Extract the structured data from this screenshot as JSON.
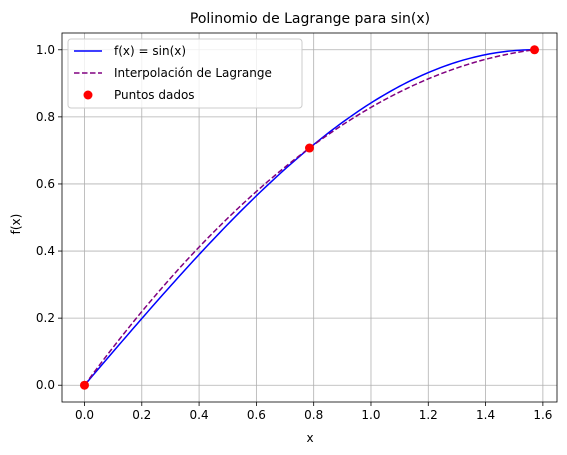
{
  "chart_data": {
    "type": "line",
    "title": "Polinomio de Lagrange para sin(x)",
    "xlabel": "x",
    "ylabel": "f(x)",
    "xlim": [
      -0.0785,
      1.6493
    ],
    "ylim": [
      -0.05,
      1.05
    ],
    "xticks": [
      0.0,
      0.2,
      0.4,
      0.6,
      0.8,
      1.0,
      1.2,
      1.4,
      1.6
    ],
    "xtick_labels": [
      "0.0",
      "0.2",
      "0.4",
      "0.6",
      "0.8",
      "1.0",
      "1.2",
      "1.4",
      "1.6"
    ],
    "yticks": [
      0.0,
      0.2,
      0.4,
      0.6,
      0.8,
      1.0
    ],
    "ytick_labels": [
      "0.0",
      "0.2",
      "0.4",
      "0.6",
      "0.8",
      "1.0"
    ],
    "grid": true,
    "legend_position": "top-left",
    "series": [
      {
        "name": "f(x) = sin(x)",
        "style": "solid",
        "color": "#0000ff",
        "x": [
          0.0,
          0.0785,
          0.1571,
          0.2356,
          0.3142,
          0.3927,
          0.4712,
          0.5498,
          0.6283,
          0.7069,
          0.7854,
          0.8639,
          0.9425,
          1.021,
          1.0996,
          1.1781,
          1.2566,
          1.3352,
          1.4137,
          1.4923,
          1.5708
        ],
        "y": [
          0.0,
          0.0785,
          0.1564,
          0.2334,
          0.309,
          0.3827,
          0.454,
          0.5225,
          0.5878,
          0.6494,
          0.7071,
          0.7604,
          0.809,
          0.8526,
          0.891,
          0.9239,
          0.9511,
          0.9724,
          0.9877,
          0.9969,
          1.0
        ]
      },
      {
        "name": "Interpolación de Lagrange",
        "style": "dashed",
        "color": "#800080",
        "x": [
          0.0,
          0.0785,
          0.1571,
          0.2356,
          0.3142,
          0.3927,
          0.4712,
          0.5498,
          0.6283,
          0.7069,
          0.7854,
          0.8639,
          0.9425,
          1.021,
          1.0996,
          1.1781,
          1.2566,
          1.3352,
          1.4137,
          1.4923,
          1.5708
        ],
        "y": [
          0.0,
          0.0873,
          0.1722,
          0.2547,
          0.3348,
          0.4126,
          0.488,
          0.5611,
          0.6317,
          0.6999,
          0.7071,
          0.7663,
          0.8226,
          0.8765,
          0.9279,
          0.9769,
          0.94,
          0.9574,
          0.9735,
          0.988,
          1.0
        ]
      },
      {
        "name": "Puntos dados",
        "style": "markers",
        "color": "#ff0000",
        "x": [
          0.0,
          0.7854,
          1.5708
        ],
        "y": [
          0.0,
          0.7071,
          1.0
        ]
      }
    ]
  }
}
